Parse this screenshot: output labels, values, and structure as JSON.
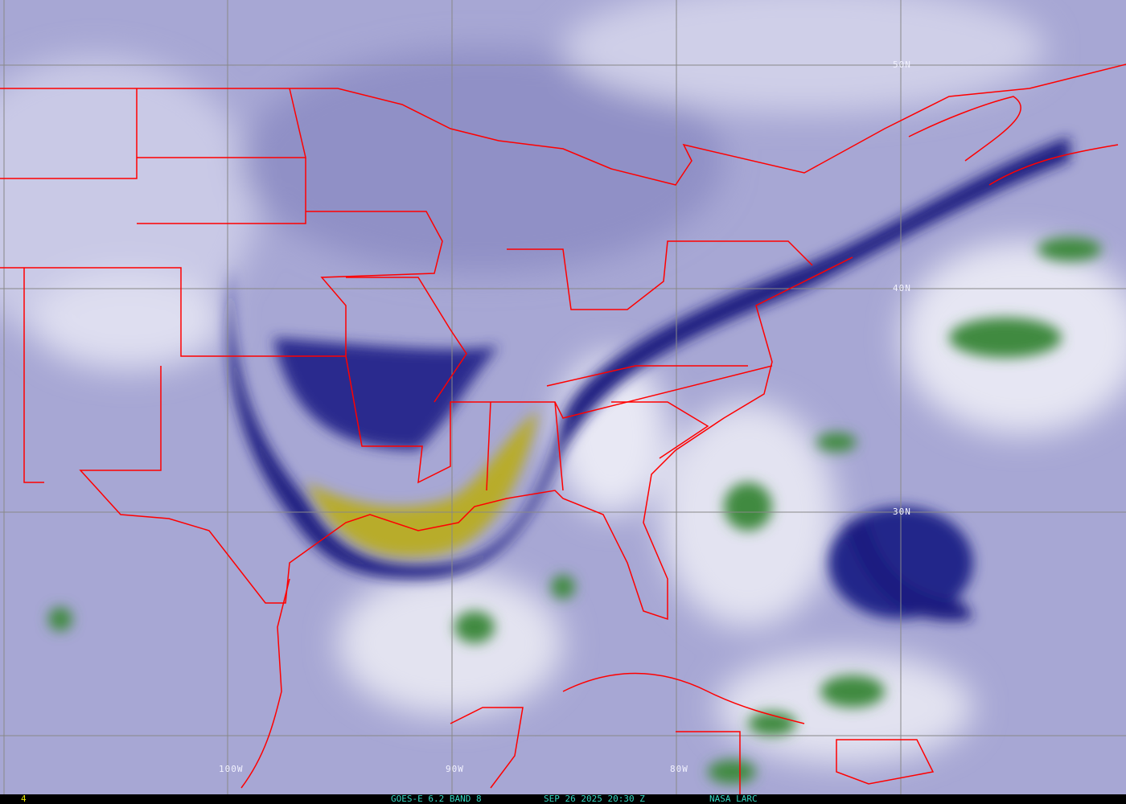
{
  "image": {
    "kind": "satellite water vapor imagery",
    "colors": {
      "dry_dark": "#10126e",
      "moist_white": "#eeeef8",
      "cloud_green": "#3f8a3f",
      "high_yellow": "#b8ac2c",
      "borders": "#ff0000",
      "grid": "#888888",
      "footer_text": "#33d6c0",
      "frame_number": "#e8e800"
    }
  },
  "grid_labels": {
    "lat": [
      "50N",
      "40N",
      "30N"
    ],
    "lon": [
      "100W",
      "90W",
      "80W"
    ]
  },
  "footer": {
    "frame": "4",
    "product": "GOES-E 6.2 BAND 8",
    "datetime": "SEP 26 2025 20:30 Z",
    "credit": "NASA LARC"
  }
}
